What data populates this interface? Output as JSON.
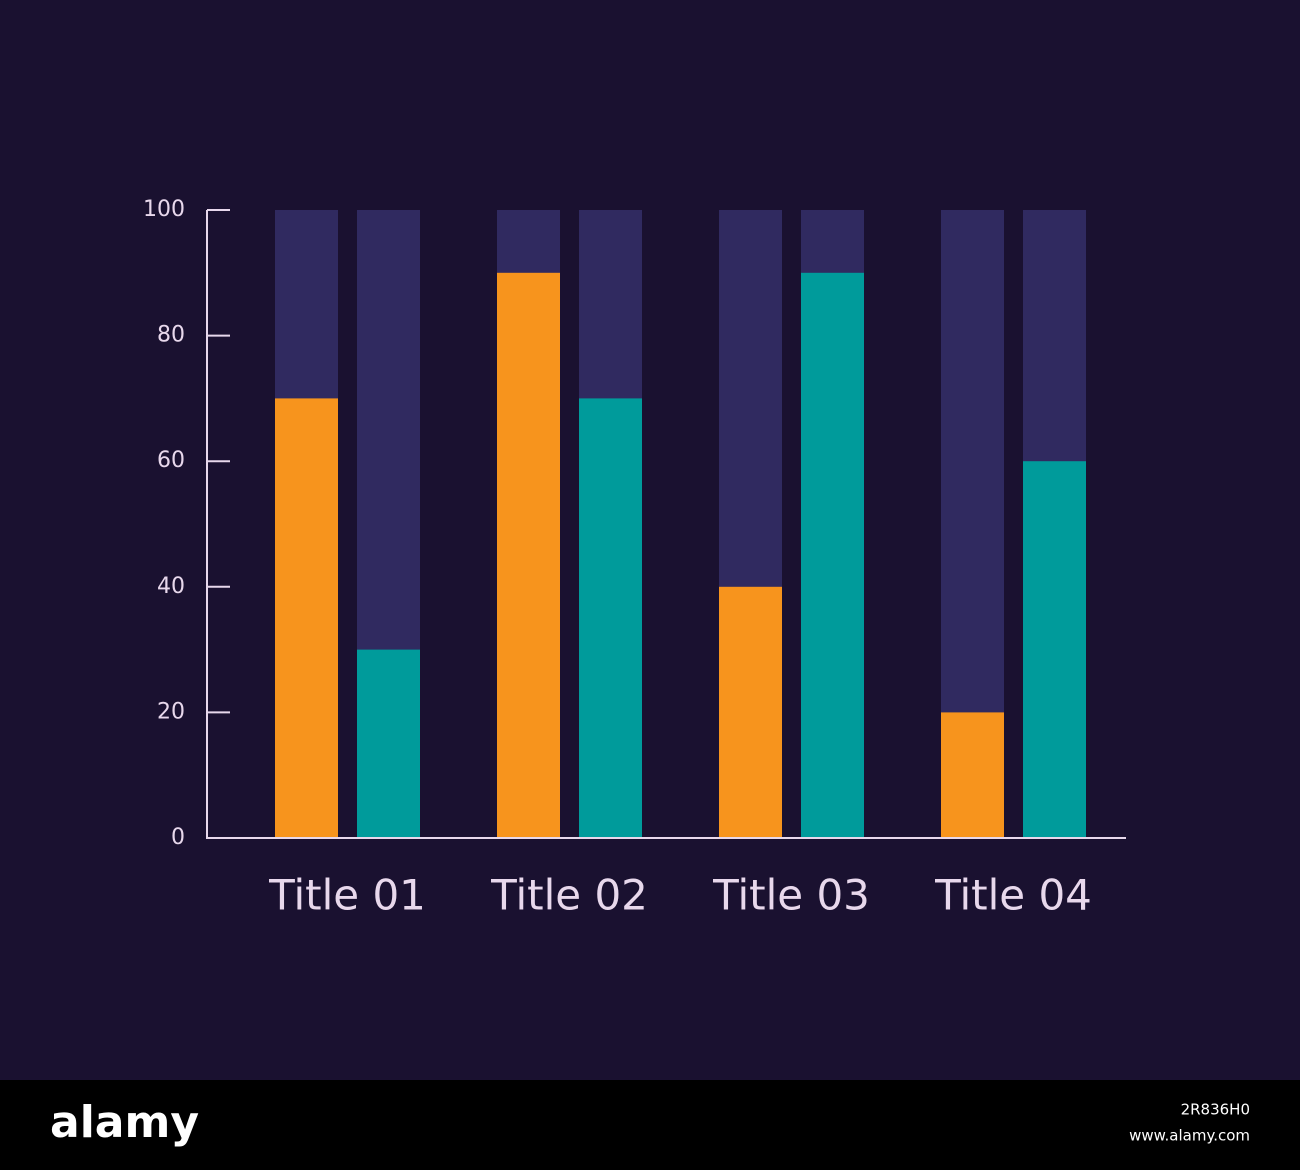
{
  "chart_data": {
    "type": "bar",
    "categories": [
      "Title 01",
      "Title 02",
      "Title 03",
      "Title 04"
    ],
    "series": [
      {
        "color": "#f7941d",
        "values": [
          70,
          90,
          40,
          20
        ]
      },
      {
        "color": "#009b9b",
        "values": [
          30,
          70,
          90,
          60
        ]
      }
    ],
    "track_color": "#302a60",
    "ylim": [
      0,
      100
    ],
    "yticks": [
      0,
      20,
      40,
      60,
      80,
      100
    ]
  },
  "footer": {
    "brand": "alamy",
    "image_id": "2R836H0",
    "url": "www.alamy.com"
  }
}
